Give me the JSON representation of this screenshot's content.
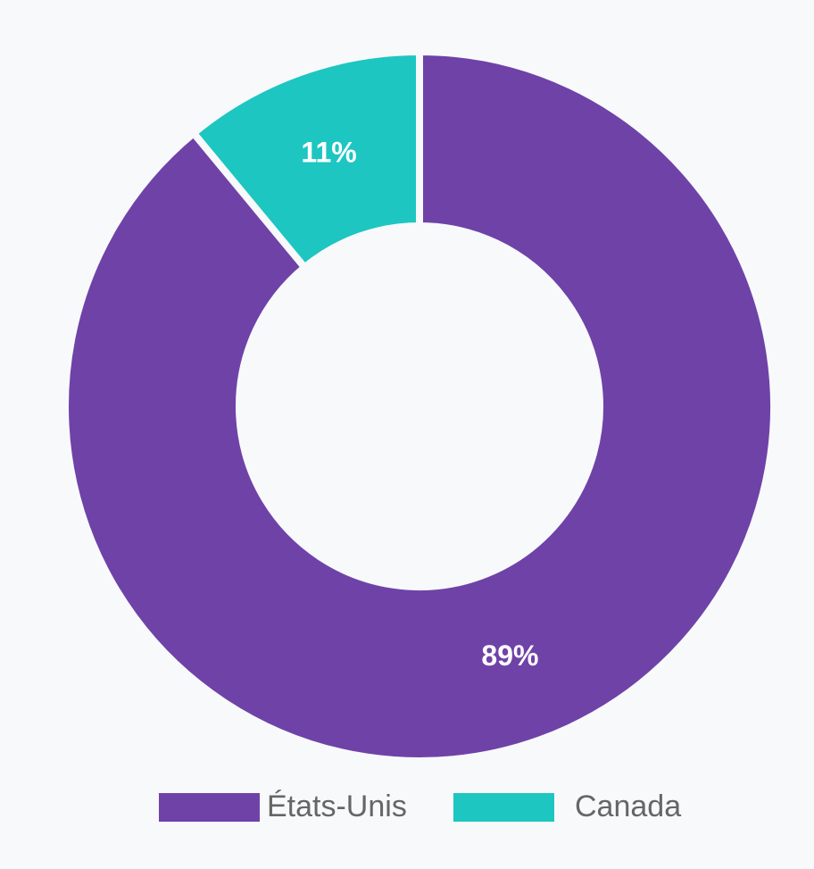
{
  "chart_data": {
    "type": "donut",
    "categories": [
      "États-Unis",
      "Canada"
    ],
    "values": [
      89,
      11
    ],
    "value_labels": [
      "89%",
      "11%"
    ],
    "colors": [
      "#6f42a8",
      "#1dc6c1"
    ],
    "legend": "bottom"
  }
}
